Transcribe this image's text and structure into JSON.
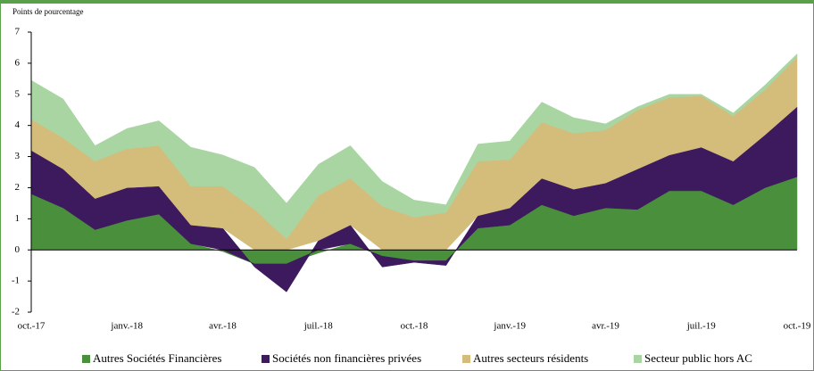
{
  "chart_data": {
    "type": "stacked_area",
    "y_axis_label": "Points de pourcentage",
    "categories": [
      "oct.-17",
      null,
      null,
      "janv.-18",
      null,
      null,
      "avr.-18",
      null,
      null,
      "juil.-18",
      null,
      null,
      "oct.-18",
      null,
      null,
      "janv.-19",
      null,
      null,
      "avr.-19",
      null,
      null,
      "juil.-19",
      null,
      null,
      "oct.-19"
    ],
    "series": [
      {
        "name": "Autres Sociétés Financières",
        "color": "#4a8f3c",
        "values": [
          1.8,
          1.35,
          0.65,
          0.95,
          1.15,
          0.2,
          -0.05,
          -0.45,
          -0.45,
          -0.1,
          0.2,
          -0.2,
          -0.35,
          -0.35,
          0.7,
          0.8,
          1.45,
          1.1,
          1.35,
          1.3,
          1.9,
          1.9,
          1.45,
          2.0,
          2.35
        ]
      },
      {
        "name": "Sociétés non financières privées",
        "color": "#3d1a5e",
        "values": [
          1.4,
          1.25,
          1.0,
          1.05,
          0.9,
          0.6,
          0.7,
          -0.1,
          -0.9,
          0.3,
          0.6,
          -0.35,
          -0.05,
          -0.15,
          0.4,
          0.55,
          0.85,
          0.85,
          0.8,
          1.3,
          1.15,
          1.4,
          1.4,
          1.7,
          2.25
        ]
      },
      {
        "name": "Autres secteurs résidents",
        "color": "#d4bc7a",
        "values": [
          1.0,
          1.0,
          1.2,
          1.25,
          1.3,
          1.25,
          1.35,
          1.3,
          0.35,
          1.45,
          1.5,
          1.4,
          1.05,
          1.2,
          1.75,
          1.55,
          1.8,
          1.8,
          1.7,
          1.9,
          1.85,
          1.65,
          1.45,
          1.45,
          1.6
        ]
      },
      {
        "name": "Secteur public hors AC",
        "color": "#a8d5a2",
        "values": [
          1.25,
          1.25,
          0.5,
          0.65,
          0.8,
          1.25,
          1.0,
          1.35,
          1.15,
          1.0,
          1.05,
          0.8,
          0.55,
          0.25,
          0.55,
          0.6,
          0.65,
          0.5,
          0.2,
          0.1,
          0.1,
          0.05,
          0.1,
          0.15,
          0.1
        ]
      }
    ],
    "ylim": [
      -2,
      7
    ],
    "yticks": [
      -2,
      -1,
      0,
      1,
      2,
      3,
      4,
      5,
      6,
      7
    ],
    "legend": "bottom"
  }
}
